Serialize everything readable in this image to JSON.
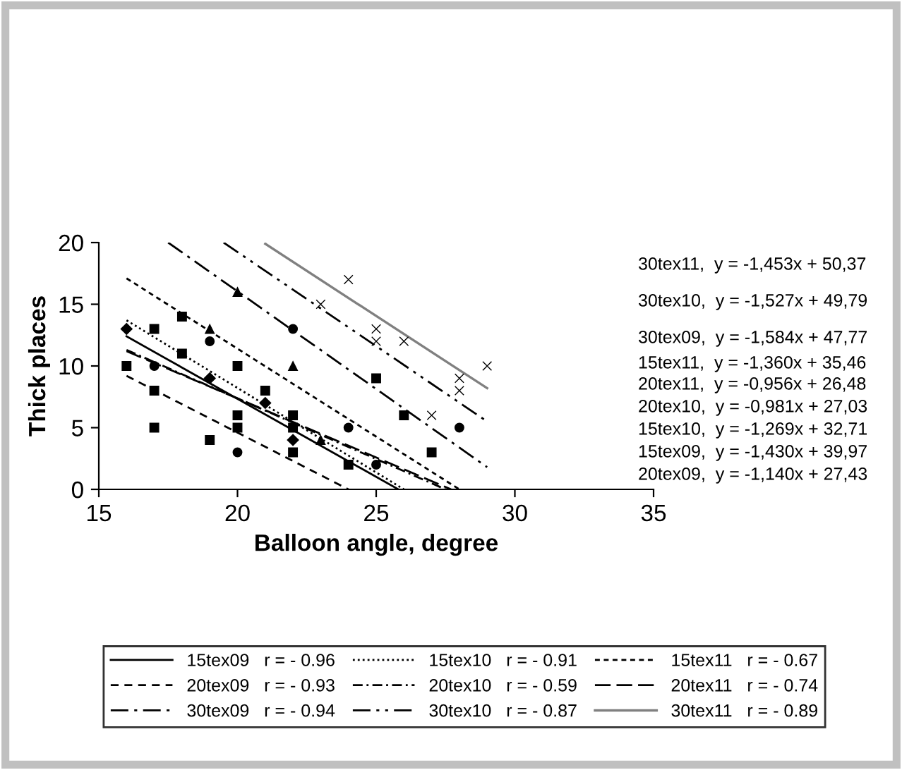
{
  "chart_data": {
    "type": "scatter",
    "xlabel": "Balloon angle, degree",
    "ylabel": "Thick places",
    "xlim": [
      15,
      35
    ],
    "xticks": [
      15,
      20,
      25,
      30,
      35
    ],
    "ylim": [
      0,
      20
    ],
    "yticks": [
      0,
      5,
      10,
      15,
      20
    ],
    "grid": false,
    "legend": "bottom",
    "series": [
      {
        "type": "line",
        "name": "15tex09   r = - 0.96",
        "color": "#000000",
        "line_style": "solid",
        "x": [
          16,
          25.8
        ],
        "values": [
          12.4,
          0
        ]
      },
      {
        "type": "line",
        "name": "15tex10   r = - 0.91",
        "color": "#000000",
        "line_style": "dotted",
        "x": [
          16,
          26
        ],
        "values": [
          13.7,
          0
        ]
      },
      {
        "type": "line",
        "name": "15tex11   r = - 0.67",
        "color": "#000000",
        "line_style": "shortdash",
        "x": [
          16,
          28
        ],
        "values": [
          17.1,
          0
        ]
      },
      {
        "type": "line",
        "name": "20tex09   r = - 0.93",
        "color": "#000000",
        "line_style": "dashed",
        "x": [
          16,
          24
        ],
        "values": [
          9.2,
          0
        ]
      },
      {
        "type": "line",
        "name": "20tex10   r = - 0.59",
        "color": "#000000",
        "line_style": "dashdot",
        "x": [
          16,
          27.5
        ],
        "values": [
          11.3,
          0
        ]
      },
      {
        "type": "line",
        "name": "20tex11   r = - 0.74",
        "color": "#000000",
        "line_style": "longdash",
        "x": [
          16,
          27.7
        ],
        "values": [
          11.2,
          0
        ]
      },
      {
        "type": "line",
        "name": "30tex09   r = - 0.94",
        "color": "#000000",
        "line_style": "longdashdot",
        "x": [
          17.5,
          29
        ],
        "values": [
          20,
          1.8
        ]
      },
      {
        "type": "line",
        "name": "30tex10   r = - 0.87",
        "color": "#000000",
        "line_style": "longdashdotdot",
        "x": [
          19.5,
          29
        ],
        "values": [
          20,
          5.5
        ]
      },
      {
        "type": "line",
        "name": "30tex11   r = - 0.89",
        "color": "#808080",
        "line_style": "solid",
        "x": [
          21,
          29
        ],
        "values": [
          19.9,
          8.2
        ]
      },
      {
        "color": "#000000",
        "marker": "square",
        "x": [
          16,
          17,
          18,
          18,
          20,
          20,
          21,
          22,
          25,
          26,
          24,
          17,
          17,
          19,
          20,
          22,
          22,
          27
        ],
        "values": [
          10,
          13,
          14,
          11,
          10,
          6,
          8,
          6,
          9,
          6,
          2,
          8,
          5,
          4,
          5,
          5,
          3,
          3
        ]
      },
      {
        "color": "#000000",
        "marker": "circle",
        "x": [
          17,
          19,
          20,
          22,
          24,
          25,
          28
        ],
        "values": [
          10,
          12,
          3,
          13,
          5,
          2,
          5
        ]
      },
      {
        "color": "#000000",
        "marker": "diamond",
        "x": [
          16,
          19,
          21,
          22
        ],
        "values": [
          13,
          9,
          7,
          4
        ]
      },
      {
        "color": "#000000",
        "marker": "triangle",
        "x": [
          19,
          20,
          22,
          23
        ],
        "values": [
          13,
          16,
          10,
          4
        ]
      },
      {
        "color": "#000000",
        "marker": "cross",
        "x": [
          24,
          25,
          26,
          29,
          28,
          23,
          25,
          27,
          28
        ],
        "values": [
          17,
          13,
          12,
          10,
          8,
          15,
          12,
          6,
          9
        ]
      }
    ],
    "annotations": [
      "30tex11,  y = -1,453x + 50,37",
      "30tex10,  y = -1,527x + 49,79",
      "30tex09,  y = -1,584x + 47,77",
      "15tex11,  y = -1,360x + 35,46",
      "20tex11,  y = -0,956x + 26,48",
      "20tex10,  y = -0,981x + 27,03",
      "15tex10,  y = -1,269x + 32,71",
      "15tex09,  y = -1,430x + 39,97",
      "20tex09,  y = -1,140x + 27,43"
    ]
  }
}
